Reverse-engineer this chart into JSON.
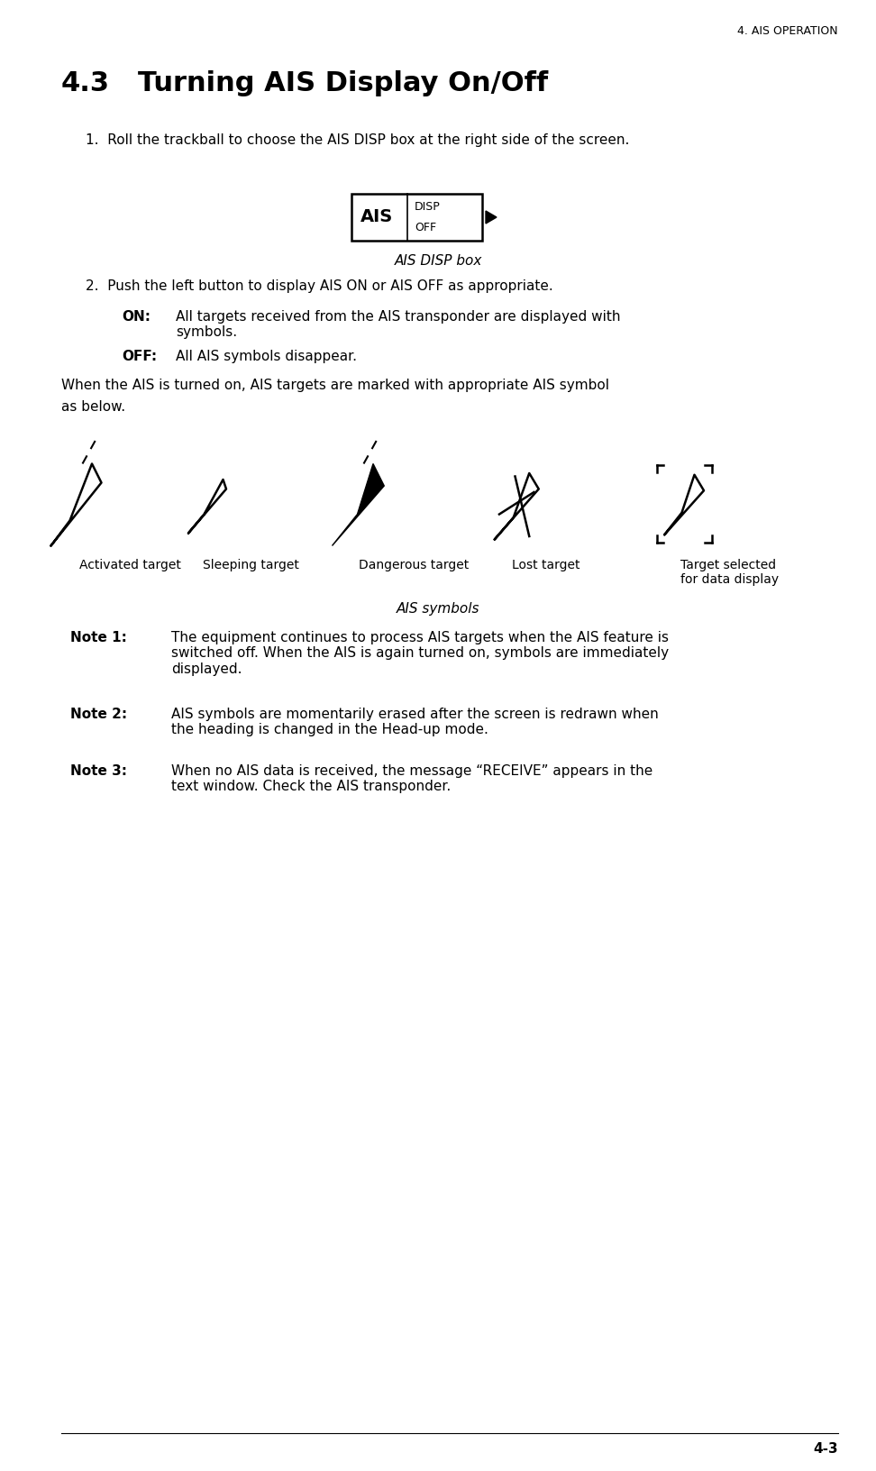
{
  "page_header": "4. AIS OPERATION",
  "section_num": "4.3",
  "section_title": "Turning AIS Display On/Off",
  "step1": "1.   Roll the trackball to choose the AIS DISP box at the right side of the screen.",
  "ais_disp_ais": "AIS",
  "ais_disp_label_top": "DISP",
  "ais_disp_label_bot": "OFF",
  "ais_disp_caption": "AIS DISP box",
  "step2": "2.   Push the left button to display AIS ON or AIS OFF as appropriate.",
  "on_label": "ON:",
  "on_text": "All targets received from the AIS transponder are displayed with\nsymbols.",
  "off_label": "OFF:",
  "off_text": "All AIS symbols disappear.",
  "para_intro_line1": "When the AIS is turned on, AIS targets are marked with appropriate AIS symbol",
  "para_intro_line2": "as below.",
  "symbol_labels": [
    "Activated target",
    "Sleeping target",
    "Dangerous target",
    "Lost target",
    "Target selected\nfor data display"
  ],
  "ais_symbols_caption": "AIS symbols",
  "note1_label": "Note 1:",
  "note1_text": "The equipment continues to process AIS targets when the AIS feature is\nswitched off. When the AIS is again turned on, symbols are immediately\ndisplayed.",
  "note2_label": "Note 2:",
  "note2_text": "AIS symbols are momentarily erased after the screen is redrawn when\nthe heading is changed in the Head-up mode.",
  "note3_label": "Note 3:",
  "note3_text": "When no AIS data is received, the message “RECEIVE” appears in the\ntext window. Check the AIS transponder.",
  "page_num": "4-3",
  "bg_color": "#ffffff",
  "text_color": "#000000"
}
